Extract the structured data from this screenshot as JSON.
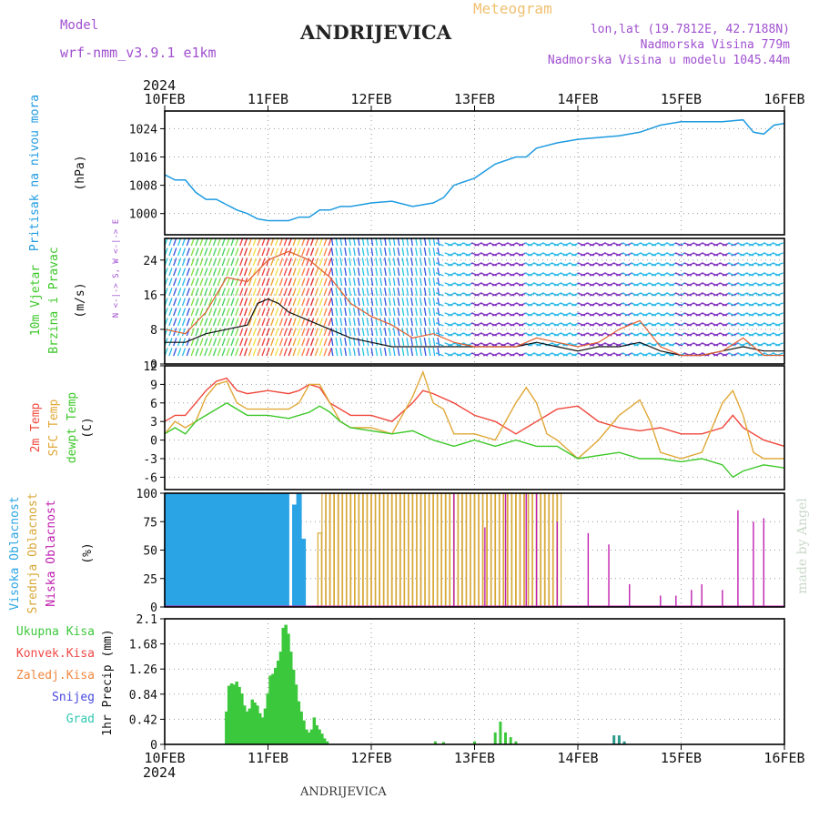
{
  "header": {
    "model_label": "Model",
    "model_name": "wrf-nmm_v3.9.1  e1km",
    "title": "ANDRIJEVICA",
    "product": "Meteogram",
    "lonlat": "lon,lat (19.7812E, 42.7188N)",
    "elevation": "Nadmorska Visina 779m",
    "model_elevation": "Nadmorska Visina u modelu 1045.44m",
    "footer_station": "ANDRIJEVICA",
    "credit": "made by Angel"
  },
  "colors": {
    "pressure": "#1e9be0",
    "temp2m": "#f0483c",
    "sfc": "#e0a838",
    "dewpt": "#3cc828",
    "high": "#2aa4e4",
    "mid": "#d8a838",
    "low": "#c020b0",
    "precip": "#3cc83c",
    "grad": "#2a9a8a",
    "purple": "#a050d0"
  },
  "chart_data": [
    {
      "type": "line",
      "panel": "pressure",
      "ylabel": "Pritisak na nivou mora",
      "unit": "(hPa)",
      "year": "2024",
      "dates": [
        "10FEB",
        "11FEB",
        "12FEB",
        "13FEB",
        "14FEB",
        "15FEB",
        "16FEB"
      ],
      "yticks": [
        "1000",
        "1008",
        "1016",
        "1024"
      ],
      "ylim": [
        994,
        1029
      ],
      "x": [
        0,
        0.1,
        0.2,
        0.3,
        0.4,
        0.5,
        0.6,
        0.7,
        0.8,
        0.9,
        1.0,
        1.1,
        1.2,
        1.3,
        1.4,
        1.5,
        1.6,
        1.7,
        1.8,
        1.9,
        2.0,
        2.2,
        2.4,
        2.6,
        2.7,
        2.8,
        3.0,
        3.2,
        3.4,
        3.5,
        3.6,
        3.8,
        4.0,
        4.2,
        4.4,
        4.6,
        4.8,
        5.0,
        5.2,
        5.4,
        5.6,
        5.7,
        5.8,
        5.9,
        6.0
      ],
      "y": [
        1011,
        1009.5,
        1009.5,
        1006,
        1004,
        1004,
        1002.5,
        1001,
        1000,
        998.5,
        998,
        998,
        998,
        999,
        999,
        1001,
        1001,
        1002,
        1002,
        1002.5,
        1003,
        1003.5,
        1002,
        1003,
        1004.5,
        1008,
        1010,
        1014,
        1016,
        1016,
        1018.5,
        1020,
        1021,
        1021.5,
        1022,
        1023,
        1025,
        1026,
        1026,
        1026,
        1026.5,
        1023,
        1022.5,
        1025,
        1025.5
      ]
    },
    {
      "type": "line",
      "panel": "wind",
      "ylabel": [
        "10m Vjetar",
        "Brzina i Pravac"
      ],
      "unit": "(m/s)",
      "compass": "N <-|-> S, W <-|-> E",
      "yticks": [
        "0",
        "8",
        "16",
        "24"
      ],
      "ylim": [
        0,
        29
      ],
      "series": [
        {
          "x": [
            0,
            0.2,
            0.4,
            0.6,
            0.8,
            0.9,
            1.0,
            1.1,
            1.2,
            1.4,
            1.6,
            1.8,
            2.0,
            2.2,
            2.4,
            2.6,
            2.8,
            3.0,
            3.2,
            3.4,
            3.6,
            3.8,
            4.0,
            4.2,
            4.4,
            4.6,
            4.8,
            5.0,
            5.2,
            5.4,
            5.6,
            5.8,
            6.0
          ],
          "y": [
            5,
            5,
            7,
            8,
            9,
            14,
            15,
            14,
            12,
            10,
            8,
            6,
            5,
            4,
            4,
            4,
            4,
            4,
            4,
            4,
            5,
            4,
            3,
            4,
            4,
            5,
            3,
            2,
            2,
            3,
            4,
            3,
            3
          ]
        },
        {
          "x": [
            0,
            0.2,
            0.4,
            0.6,
            0.8,
            1.0,
            1.2,
            1.4,
            1.6,
            1.8,
            2.0,
            2.2,
            2.4,
            2.6,
            2.8,
            3.0,
            3.2,
            3.4,
            3.6,
            3.8,
            4.0,
            4.2,
            4.4,
            4.6,
            4.8,
            5.0,
            5.2,
            5.4,
            5.6,
            5.8,
            6.0
          ],
          "y": [
            8,
            7,
            12,
            20,
            19,
            24,
            26,
            24,
            20,
            14,
            11,
            9,
            6,
            7,
            5,
            4,
            4,
            4,
            6,
            5,
            4,
            5,
            8,
            10,
            4,
            2,
            2,
            3,
            6,
            2,
            2
          ]
        }
      ]
    },
    {
      "type": "line",
      "panel": "temperature",
      "series_labels": [
        "2m Temp",
        "SFC Temp",
        "dewpt Temp"
      ],
      "unit": "(C)",
      "yticks": [
        "12",
        "9",
        "6",
        "3",
        "0",
        "-3",
        "-6"
      ],
      "ylim": [
        -8,
        12
      ],
      "series": [
        {
          "name": "2m Temp",
          "x": [
            0,
            0.1,
            0.2,
            0.3,
            0.4,
            0.5,
            0.6,
            0.7,
            0.8,
            1.0,
            1.2,
            1.3,
            1.4,
            1.5,
            1.6,
            1.7,
            1.8,
            2.0,
            2.2,
            2.4,
            2.5,
            2.6,
            2.8,
            3.0,
            3.2,
            3.4,
            3.5,
            3.6,
            3.8,
            4.0,
            4.2,
            4.4,
            4.6,
            4.8,
            5.0,
            5.2,
            5.4,
            5.5,
            5.6,
            5.8,
            6.0
          ],
          "y": [
            3,
            4,
            4,
            6,
            8,
            9.5,
            10,
            8,
            7.5,
            8,
            7.5,
            8,
            9,
            8.5,
            6,
            5,
            4,
            4,
            3,
            6,
            8,
            7.5,
            6,
            4,
            3,
            1,
            2,
            3,
            5,
            5.5,
            3,
            2,
            1.5,
            2,
            1,
            1,
            2,
            4,
            2,
            0,
            -1
          ]
        },
        {
          "name": "SFC Temp",
          "x": [
            0,
            0.1,
            0.2,
            0.3,
            0.4,
            0.5,
            0.6,
            0.7,
            0.8,
            1.0,
            1.2,
            1.3,
            1.4,
            1.5,
            1.6,
            1.7,
            1.8,
            2.0,
            2.2,
            2.4,
            2.5,
            2.6,
            2.7,
            2.8,
            3.0,
            3.2,
            3.4,
            3.5,
            3.6,
            3.7,
            3.8,
            4.0,
            4.2,
            4.4,
            4.6,
            4.7,
            4.8,
            5.0,
            5.2,
            5.4,
            5.5,
            5.6,
            5.7,
            5.8,
            6.0
          ],
          "y": [
            1,
            3,
            2,
            3,
            7,
            9,
            9.5,
            6,
            5,
            5,
            5,
            6,
            9,
            9,
            6,
            3,
            2,
            2,
            1,
            7,
            11,
            6,
            5,
            1,
            1,
            0,
            6,
            8.5,
            6,
            1,
            0,
            -3,
            0,
            4,
            6.5,
            3,
            -2,
            -3,
            -2,
            6,
            8,
            4,
            -2,
            -3,
            -3
          ]
        },
        {
          "name": "dewpt Temp",
          "x": [
            0,
            0.1,
            0.2,
            0.3,
            0.4,
            0.5,
            0.6,
            0.7,
            0.8,
            1.0,
            1.2,
            1.4,
            1.5,
            1.6,
            1.7,
            1.8,
            2.0,
            2.2,
            2.4,
            2.6,
            2.8,
            3.0,
            3.2,
            3.4,
            3.6,
            3.8,
            4.0,
            4.2,
            4.4,
            4.6,
            4.8,
            5.0,
            5.2,
            5.4,
            5.5,
            5.6,
            5.8,
            6.0
          ],
          "y": [
            1,
            2,
            1,
            3,
            4,
            5,
            6,
            5,
            4,
            4,
            3.5,
            4.5,
            5.5,
            4.5,
            3,
            2,
            1.5,
            1,
            1.5,
            0,
            -1,
            0,
            -1,
            0,
            -1,
            -1,
            -3,
            -2.5,
            -2,
            -3,
            -3,
            -3.5,
            -3,
            -4,
            -6,
            -5,
            -4,
            -4.5
          ]
        }
      ]
    },
    {
      "type": "bar",
      "panel": "cloudiness",
      "series_labels": [
        "Visoka Oblacnost",
        "Srednja Oblacnost",
        "Niska Oblacnost"
      ],
      "unit": "(%)",
      "yticks": [
        "0",
        "25",
        "50",
        "75",
        "100"
      ],
      "ylim": [
        0,
        100
      ],
      "series": [
        {
          "name": "Visoka Oblacnost",
          "start": 0.02,
          "step": 0.04,
          "values": [
            100,
            100,
            100,
            100,
            100,
            100,
            100,
            100,
            100,
            100,
            100,
            100,
            100,
            100,
            100,
            100,
            100,
            100,
            100,
            100,
            100,
            100,
            100,
            100,
            100,
            100,
            100,
            100,
            100,
            100,
            0,
            90,
            100,
            60
          ]
        },
        {
          "name": "Srednja Oblacnost",
          "start": 1.5,
          "step": 0.04,
          "values": [
            65,
            100,
            100,
            100,
            100,
            100,
            100,
            100,
            100,
            100,
            100,
            100,
            100,
            100,
            100,
            100,
            100,
            100,
            100,
            100,
            100,
            100,
            100,
            100,
            100,
            100,
            100,
            100,
            100,
            100,
            100,
            100,
            100,
            100,
            100,
            100,
            100,
            100,
            100,
            100,
            100,
            100,
            100,
            100,
            100,
            100,
            100,
            100,
            100,
            100,
            100,
            100,
            100,
            100,
            100,
            100,
            100,
            100,
            100
          ]
        },
        {
          "name": "Niska Oblacnost",
          "x": [
            2.8,
            3.1,
            3.3,
            3.5,
            3.6,
            3.8,
            4.1,
            4.3,
            4.5,
            4.8,
            4.95,
            5.1,
            5.2,
            5.4,
            5.55,
            5.7,
            5.8
          ],
          "values": [
            100,
            70,
            100,
            100,
            100,
            75,
            65,
            55,
            20,
            10,
            10,
            15,
            20,
            15,
            85,
            75,
            78
          ]
        }
      ]
    },
    {
      "type": "bar",
      "panel": "precipitation",
      "series_labels": [
        "Ukupna Kisa",
        "Konvek.Kisa",
        "Zaledj.Kisa",
        "Snijeg",
        "Grad"
      ],
      "ylabel": "1hr Precip (mm)",
      "yticks": [
        "0",
        "0.42",
        "0.84",
        "1.26",
        "1.68",
        "2.1"
      ],
      "ylim": [
        0,
        2.1
      ],
      "start": 0.6,
      "step": 0.025,
      "values": [
        0.55,
        0.98,
        1.02,
        1.0,
        1.05,
        0.96,
        0.85,
        0.65,
        0.55,
        0.6,
        0.75,
        0.7,
        0.65,
        0.52,
        0.45,
        0.6,
        0.85,
        1.15,
        1.18,
        1.28,
        1.4,
        1.55,
        1.95,
        2.0,
        1.85,
        1.55,
        1.25,
        1.0,
        0.72,
        0.55,
        0.4,
        0.25,
        0.2,
        0.25,
        0.45,
        0.32,
        0.25,
        0.18,
        0.1,
        0.05
      ],
      "extra": [
        [
          2.62,
          0.05
        ],
        [
          2.7,
          0.04
        ],
        [
          3.0,
          0.05
        ],
        [
          3.2,
          0.2
        ],
        [
          3.25,
          0.38
        ],
        [
          3.3,
          0.2
        ],
        [
          3.35,
          0.12
        ],
        [
          3.4,
          0.05
        ],
        [
          4.35,
          0.15
        ],
        [
          4.4,
          0.15
        ],
        [
          4.45,
          0.05
        ]
      ]
    }
  ]
}
